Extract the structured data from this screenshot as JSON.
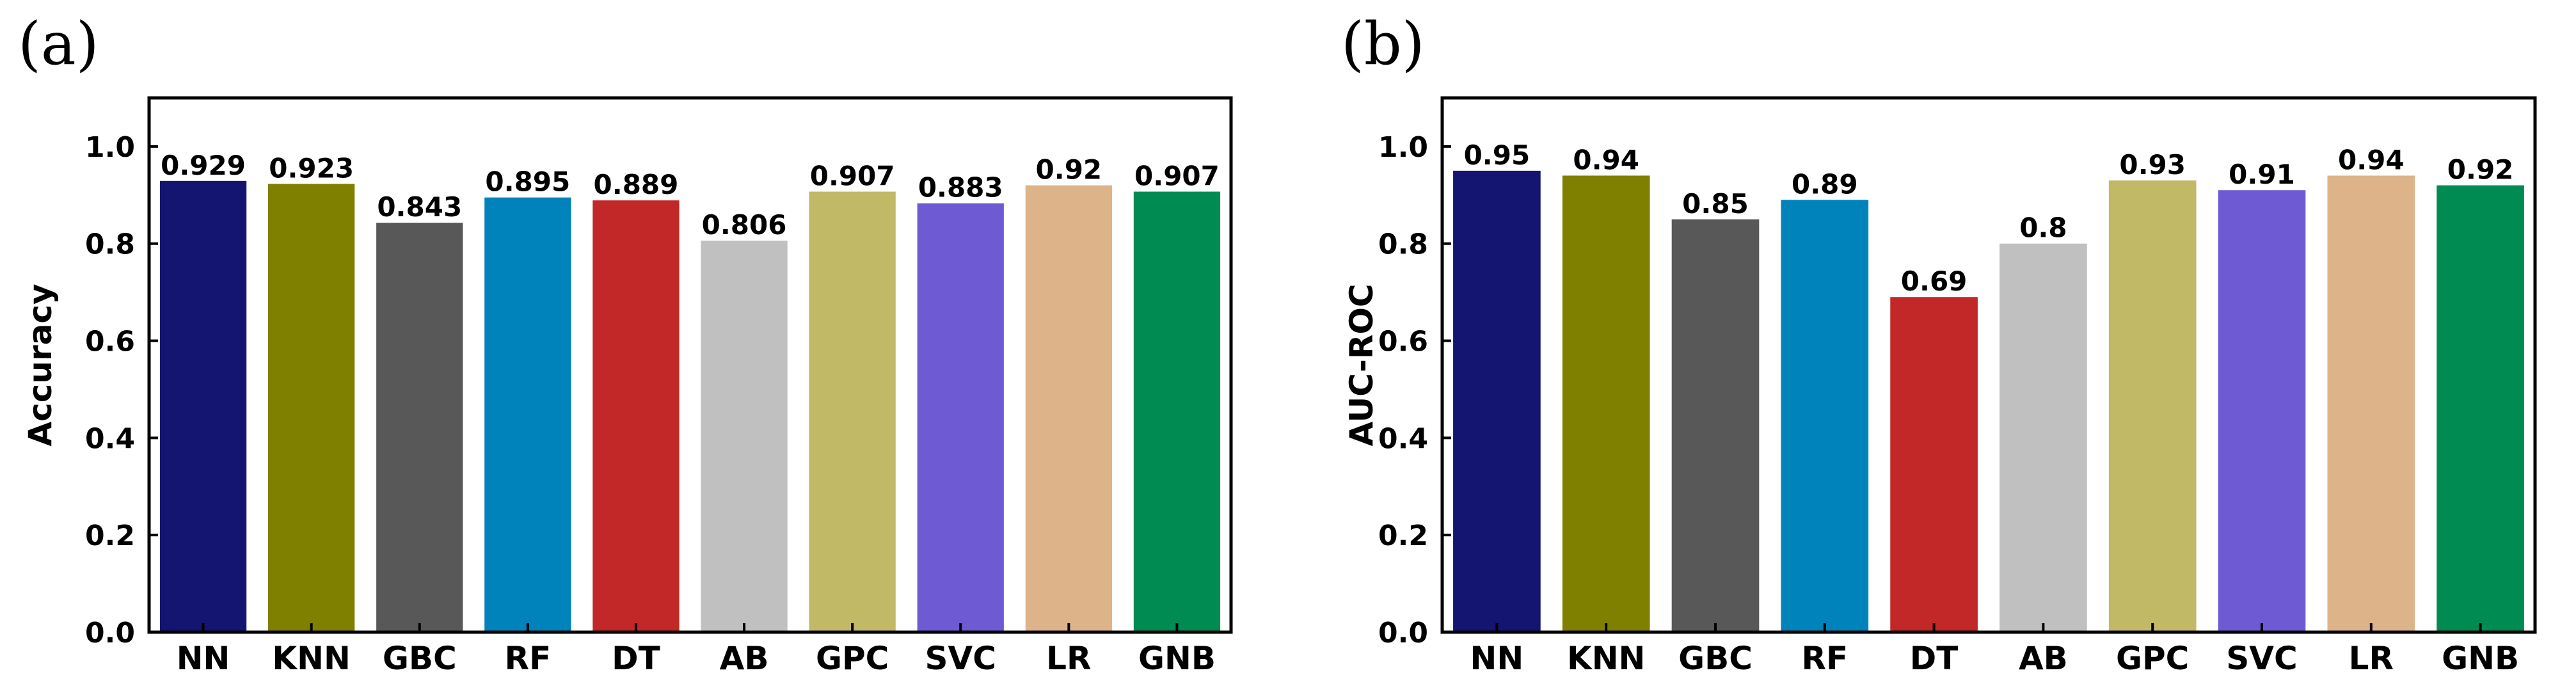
{
  "chart_data": [
    {
      "panel_label": "(a)",
      "type": "bar",
      "ylabel": "Accuracy",
      "xlabel": "",
      "ylim": [
        0,
        1.1
      ],
      "yticks": [
        "0.0",
        "0.2",
        "0.4",
        "0.6",
        "0.8",
        "1.0"
      ],
      "categories": [
        "NN",
        "KNN",
        "GBC",
        "RF",
        "DT",
        "AB",
        "GPC",
        "SVC",
        "LR",
        "GNB"
      ],
      "values": [
        0.929,
        0.923,
        0.843,
        0.895,
        0.889,
        0.806,
        0.907,
        0.883,
        0.92,
        0.907
      ],
      "value_labels": [
        "0.929",
        "0.923",
        "0.843",
        "0.895",
        "0.889",
        "0.806",
        "0.907",
        "0.883",
        "0.92",
        "0.907"
      ],
      "colors": [
        "#141570",
        "#7f7f00",
        "#585858",
        "#0083ba",
        "#c12827",
        "#c0c0c0",
        "#c1b966",
        "#6e5ad3",
        "#ddb38a",
        "#008b53"
      ]
    },
    {
      "panel_label": "(b)",
      "type": "bar",
      "ylabel": "AUC-ROC",
      "xlabel": "",
      "ylim": [
        0,
        1.1
      ],
      "yticks": [
        "0.0",
        "0.2",
        "0.4",
        "0.6",
        "0.8",
        "1.0"
      ],
      "categories": [
        "NN",
        "KNN",
        "GBC",
        "RF",
        "DT",
        "AB",
        "GPC",
        "SVC",
        "LR",
        "GNB"
      ],
      "values": [
        0.95,
        0.94,
        0.85,
        0.89,
        0.69,
        0.8,
        0.93,
        0.91,
        0.94,
        0.92
      ],
      "value_labels": [
        "0.95",
        "0.94",
        "0.85",
        "0.89",
        "0.69",
        "0.8",
        "0.93",
        "0.91",
        "0.94",
        "0.92"
      ],
      "colors": [
        "#141570",
        "#7f7f00",
        "#585858",
        "#0083ba",
        "#c12827",
        "#c0c0c0",
        "#c1b966",
        "#6e5ad3",
        "#ddb38a",
        "#008b53"
      ]
    }
  ]
}
